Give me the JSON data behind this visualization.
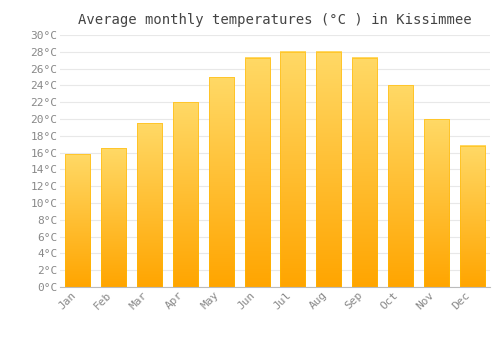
{
  "title": "Average monthly temperatures (°C ) in Kissimmee",
  "months": [
    "Jan",
    "Feb",
    "Mar",
    "Apr",
    "May",
    "Jun",
    "Jul",
    "Aug",
    "Sep",
    "Oct",
    "Nov",
    "Dec"
  ],
  "temperatures": [
    15.8,
    16.5,
    19.5,
    22.0,
    25.0,
    27.3,
    28.0,
    28.0,
    27.3,
    24.0,
    20.0,
    16.8
  ],
  "bar_color_top": "#FFD966",
  "bar_color_bottom": "#FFA500",
  "ylim": [
    0,
    30
  ],
  "background_color": "#ffffff",
  "grid_color": "#e8e8e8",
  "title_fontsize": 10,
  "tick_fontsize": 8,
  "font_family": "monospace",
  "title_color": "#444444",
  "tick_color": "#888888",
  "bar_width": 0.7
}
